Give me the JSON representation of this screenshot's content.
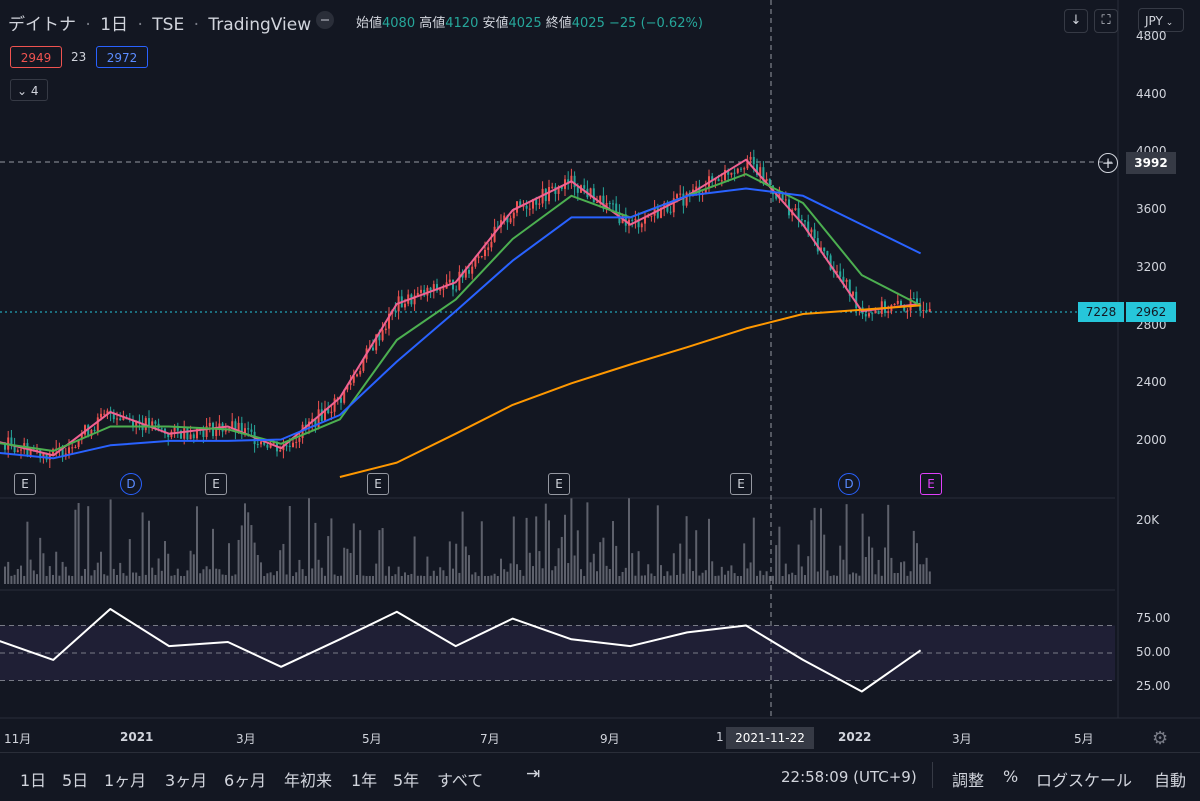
{
  "header": {
    "symbol_name": "デイトナ",
    "interval": "1日",
    "exchange": "TSE",
    "source": "TradingView",
    "ohlc": {
      "open_label": "始値",
      "open": "4080",
      "high_label": "高値",
      "high": "4120",
      "low_label": "安値",
      "low": "4025",
      "close_label": "終値",
      "close": "4025",
      "change": "−25 (−0.62%)"
    },
    "currency": "JPY",
    "ma_badge_left": "2949",
    "ma_badge_mid": "23",
    "ma_badge_right": "2972",
    "collapse_count": "4"
  },
  "price_axis": {
    "labels": [
      "4800",
      "4400",
      "4000",
      "3600",
      "3200",
      "2800",
      "2400",
      "2000"
    ],
    "crosshair_price": "3992",
    "last_price": "2962",
    "countdown": "7228"
  },
  "volume_axis": {
    "label": "20K"
  },
  "rsi_axis": {
    "labels": [
      "75.00",
      "50.00",
      "25.00"
    ]
  },
  "time_axis": {
    "labels": [
      "11月",
      "2021",
      "3月",
      "5月",
      "7月",
      "9月",
      "1",
      "2022",
      "3月",
      "5月"
    ],
    "crosshair_date": "2021-11-22"
  },
  "events": [
    "E",
    "D",
    "E",
    "E",
    "E",
    "E",
    "D",
    "E"
  ],
  "bottom_bar": {
    "ranges": [
      "1日",
      "5日",
      "1ヶ月",
      "3ヶ月",
      "6ヶ月",
      "年初来",
      "1年",
      "5年",
      "すべて"
    ],
    "time": "22:58:09 (UTC+9)",
    "adjust": "調整",
    "percent": "%",
    "log": "ログスケール",
    "auto": "自動"
  },
  "colors": {
    "background": "#131722",
    "up": "#ef5350",
    "down": "#26a69a",
    "ma_fast": "#f06292",
    "ma_mid": "#4caf50",
    "ma_slow": "#2962ff",
    "ma_long": "#ff9800",
    "rsi_line": "#ffffff",
    "rsi_band": "#7e57c2",
    "last_price_bg": "#26c6da"
  },
  "chart_data": {
    "type": "line",
    "x_range": [
      "2020-10-20",
      "2022-02-21"
    ],
    "ylim": [
      1750,
      4870
    ],
    "series": [
      {
        "x": [
          "2020-10",
          "2020-11",
          "2020-12",
          "2021-01",
          "2021-02",
          "2021-03",
          "2021-04",
          "2021-05",
          "2021-06",
          "2021-07",
          "2021-08",
          "2021-09",
          "2021-10",
          "2021-11",
          "2021-12",
          "2022-01",
          "2022-02"
        ],
        "values": [
          2000,
          1900,
          2200,
          2050,
          2100,
          1950,
          2300,
          2950,
          3100,
          3600,
          3800,
          3500,
          3700,
          3950,
          3500,
          2900,
          2950
        ]
      },
      {
        "x": [
          "2020-10",
          "2020-11",
          "2020-12",
          "2021-01",
          "2021-02",
          "2021-03",
          "2021-04",
          "2021-05",
          "2021-06",
          "2021-07",
          "2021-08",
          "2021-09",
          "2021-10",
          "2021-11",
          "2021-12",
          "2022-01",
          "2022-02"
        ],
        "values": [
          1990,
          1930,
          2100,
          2100,
          2080,
          1980,
          2150,
          2700,
          2980,
          3400,
          3700,
          3550,
          3700,
          3850,
          3650,
          3150,
          2940
        ]
      },
      {
        "x": [
          "2020-10",
          "2020-11",
          "2020-12",
          "2021-01",
          "2021-02",
          "2021-03",
          "2021-04",
          "2021-05",
          "2021-06",
          "2021-07",
          "2021-08",
          "2021-09",
          "2021-10",
          "2021-11",
          "2021-12",
          "2022-01",
          "2022-02"
        ],
        "values": [
          1920,
          1880,
          1970,
          2000,
          2000,
          2010,
          2180,
          2550,
          2900,
          3250,
          3550,
          3550,
          3700,
          3750,
          3700,
          3500,
          3300
        ]
      },
      {
        "x": [
          "2021-04",
          "2021-05",
          "2021-06",
          "2021-07",
          "2021-08",
          "2021-09",
          "2021-10",
          "2021-11",
          "2021-12",
          "2022-01",
          "2022-02"
        ],
        "values": [
          1750,
          1850,
          2050,
          2250,
          2400,
          2530,
          2650,
          2780,
          2880,
          2910,
          2940
        ]
      }
    ],
    "rsi": {
      "x": [
        "2020-10",
        "2020-11",
        "2020-12",
        "2021-01",
        "2021-02",
        "2021-03",
        "2021-04",
        "2021-05",
        "2021-06",
        "2021-07",
        "2021-08",
        "2021-09",
        "2021-10",
        "2021-11",
        "2021-12",
        "2022-01",
        "2022-02"
      ],
      "values": [
        60,
        45,
        82,
        55,
        58,
        40,
        60,
        80,
        55,
        75,
        60,
        55,
        65,
        70,
        45,
        22,
        52
      ],
      "levels": [
        70,
        50,
        30
      ],
      "ylim": [
        10,
        90
      ]
    }
  }
}
